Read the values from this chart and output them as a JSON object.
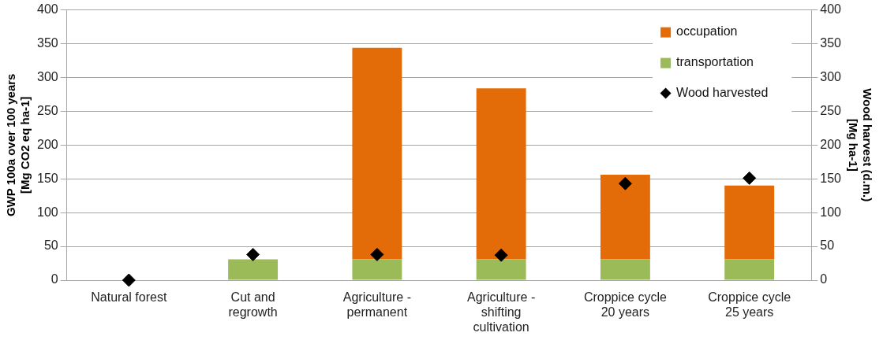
{
  "chart_data": {
    "type": "bar",
    "stacked": true,
    "categories": [
      "Natural forest",
      "Cut and\nregrowth",
      "Agriculture -\npermanent",
      "Agriculture -\nshifting\ncultivation",
      "Croppice cycle\n20 years",
      "Croppice cycle\n25 years"
    ],
    "series": [
      {
        "name": "transportation",
        "color": "#9bbb59",
        "values": [
          0,
          31,
          31,
          31,
          31,
          31
        ]
      },
      {
        "name": "occupation",
        "color": "#e36c09",
        "values": [
          0,
          0,
          313,
          253,
          125,
          109
        ]
      },
      {
        "name": "Wood harvested",
        "type": "scatter",
        "axis": "y2",
        "marker": "diamond",
        "color": "#000000",
        "values": [
          0,
          38,
          38,
          37,
          143,
          151
        ]
      }
    ],
    "ylabel": "GWP 100a over 100 years\n[Mg CO2 eq ha-1]",
    "y2label": "Wood harvest (d.m.)\n[Mg ha-1]",
    "ylim": [
      0,
      400
    ],
    "yticks": [
      0,
      50,
      100,
      150,
      200,
      250,
      300,
      350,
      400
    ],
    "y2lim": [
      0,
      400
    ],
    "y2ticks": [
      0,
      50,
      100,
      150,
      200,
      250,
      300,
      350,
      400
    ],
    "grid": "y",
    "legend": "top right"
  }
}
